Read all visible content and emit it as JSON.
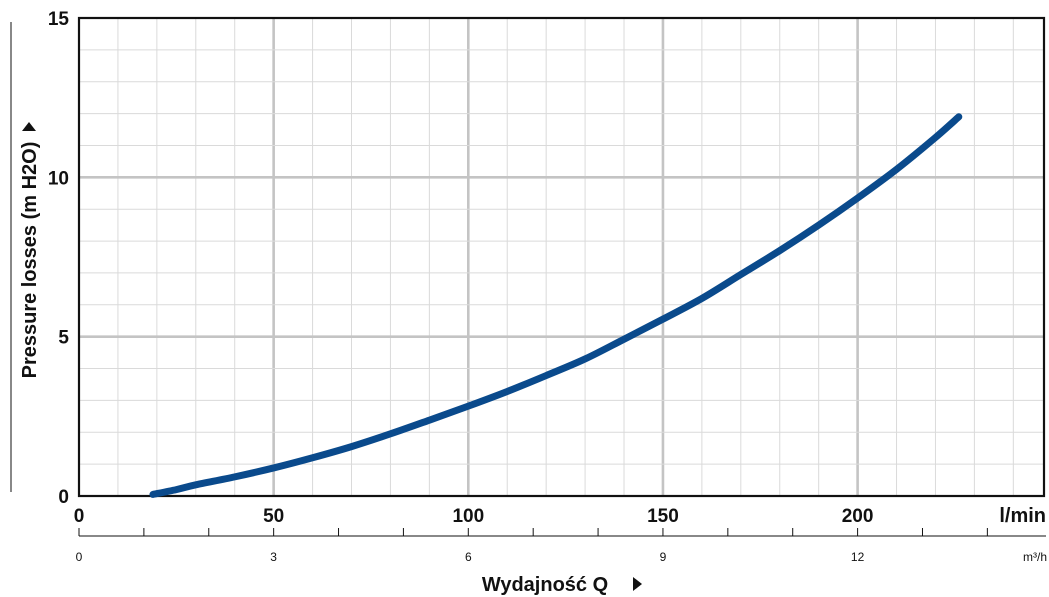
{
  "chart_data": {
    "type": "line",
    "ylabel": "Pressure losses  (m H2O)",
    "xlabel": "Wydajność Q",
    "x_unit": "l/min",
    "x2_unit": "m³/h",
    "xlim": [
      0,
      250
    ],
    "ylim": [
      0,
      15
    ],
    "x_ticks": [
      0,
      50,
      100,
      150,
      200
    ],
    "y_ticks": [
      0,
      5,
      10,
      15
    ],
    "x2_ticks": [
      0,
      3,
      6,
      9,
      12
    ],
    "grid": true,
    "series": [
      {
        "color": "#0a4a8c",
        "x": [
          19,
          25,
          30,
          40,
          50,
          60,
          70,
          80,
          90,
          100,
          110,
          120,
          130,
          140,
          150,
          160,
          170,
          180,
          190,
          200,
          210,
          220,
          226
        ],
        "y": [
          0.05,
          0.2,
          0.35,
          0.6,
          0.88,
          1.2,
          1.55,
          1.95,
          2.38,
          2.82,
          3.28,
          3.78,
          4.3,
          4.92,
          5.55,
          6.2,
          6.95,
          7.7,
          8.5,
          9.35,
          10.25,
          11.25,
          11.9
        ]
      }
    ]
  },
  "colors": {
    "grid_major": "#c4c4c4",
    "grid_minor": "#dadada",
    "axis": "#111111"
  }
}
